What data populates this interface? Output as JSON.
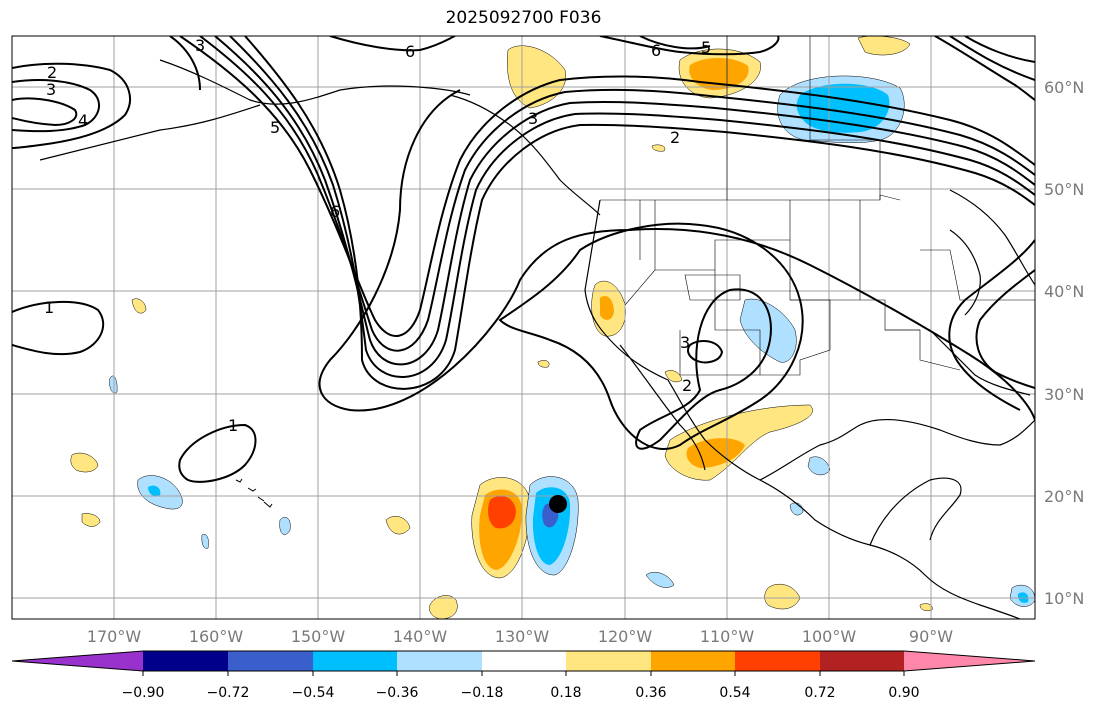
{
  "title": "2025092700 F036",
  "lat_labels": [
    "60°N",
    "50°N",
    "40°N",
    "30°N",
    "20°N",
    "10°N"
  ],
  "lon_labels": [
    "170°W",
    "160°W",
    "150°W",
    "140°W",
    "130°W",
    "120°W",
    "110°W",
    "100°W",
    "90°W"
  ],
  "colorbar": {
    "ticks": [
      "−0.90",
      "−0.72",
      "−0.54",
      "−0.36",
      "−0.18",
      "0.18",
      "0.36",
      "0.54",
      "0.72",
      "0.90"
    ],
    "colors": [
      "#9932cc",
      "#00008b",
      "#3a5fcd",
      "#00bfff",
      "#b0e0ff",
      "#ffffff",
      "#ffe680",
      "#ffa500",
      "#ff4000",
      "#b22222",
      "#ff88aa"
    ]
  },
  "contour_labels": [
    "1",
    "2",
    "3",
    "4",
    "5",
    "6"
  ],
  "colors": {
    "pos_light": "#ffe680",
    "pos_mid": "#ffa500",
    "pos_strong": "#ff4000",
    "neg_light": "#b0e0ff",
    "neg_mid": "#00bfff",
    "neg_strong": "#3a5fcd",
    "grid": "#a0a0a0"
  },
  "marker": "storm-center-dot"
}
